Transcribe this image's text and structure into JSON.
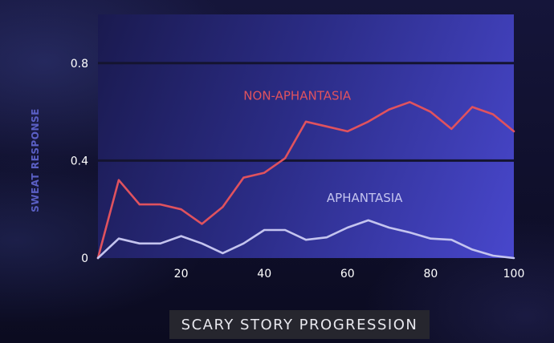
{
  "chart_data": {
    "type": "line",
    "xlabel": "SCARY STORY PROGRESSION",
    "ylabel": "SWEAT RESPONSE",
    "xlim": [
      0,
      100
    ],
    "ylim": [
      0,
      1
    ],
    "xticks": [
      20,
      40,
      60,
      80,
      100
    ],
    "yticks": [
      0,
      0.4,
      0.8
    ],
    "ytick_labels": [
      "0",
      "0.4",
      "0.8"
    ],
    "grid": "horizontal",
    "legend": "inline labels",
    "x": [
      0,
      5,
      10,
      15,
      20,
      25,
      30,
      35,
      40,
      45,
      50,
      55,
      60,
      65,
      70,
      75,
      80,
      85,
      90,
      95,
      100
    ],
    "series": [
      {
        "name": "NON-APHANTASIA",
        "color": "#e0525e",
        "label_at": [
          35,
          0.65
        ],
        "values": [
          0.0,
          0.32,
          0.22,
          0.22,
          0.2,
          0.14,
          0.21,
          0.33,
          0.35,
          0.41,
          0.56,
          0.54,
          0.52,
          0.56,
          0.61,
          0.64,
          0.6,
          0.53,
          0.62,
          0.59,
          0.52
        ]
      },
      {
        "name": "APHANTASIA",
        "color": "#c4c4ef",
        "label_at": [
          55,
          0.23
        ],
        "values": [
          0.0,
          0.08,
          0.06,
          0.06,
          0.09,
          0.06,
          0.02,
          0.06,
          0.115,
          0.115,
          0.075,
          0.085,
          0.125,
          0.155,
          0.125,
          0.105,
          0.08,
          0.075,
          0.035,
          0.01,
          0.0
        ]
      }
    ],
    "colors": {
      "tick_text": "#ffffff",
      "gridline": "#141430",
      "axis_label": "#5a5fc4"
    }
  }
}
